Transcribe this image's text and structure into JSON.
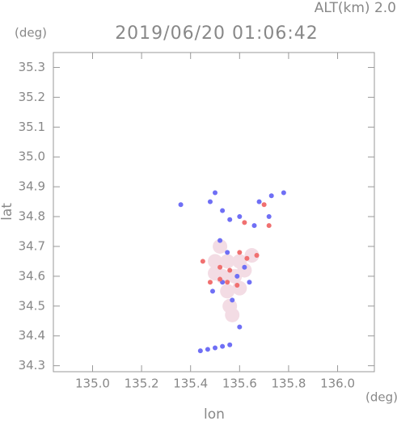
{
  "chart_data": {
    "type": "scatter",
    "title": "2019/06/20 01:06:42",
    "subtitle": "ALT(km) 2.0",
    "y_unit": "(deg)",
    "x_unit": "(deg)",
    "ylabel": "lat",
    "xlabel": "lon",
    "xlim": [
      134.84,
      136.15
    ],
    "ylim": [
      34.28,
      35.35
    ],
    "xticks": [
      {
        "value": 135,
        "label": "135.0"
      },
      135.2,
      135.4,
      135.6,
      135.8,
      {
        "value": 136,
        "label": "136.0"
      }
    ],
    "yticks": [
      35.3,
      35.2,
      35.1,
      {
        "value": 35,
        "label": "35.0"
      },
      34.9,
      34.8,
      34.7,
      34.6,
      34.5,
      34.4,
      34.3
    ],
    "series": [
      {
        "color": "#f3dce4",
        "x": [
          135.52,
          135.5,
          135.55,
          135.6,
          135.53,
          135.58,
          135.62,
          135.55,
          135.6,
          135.56,
          135.57,
          135.65,
          135.5
        ],
        "y": [
          34.7,
          34.65,
          34.65,
          34.65,
          34.6,
          34.6,
          34.62,
          34.55,
          34.56,
          34.5,
          34.47,
          34.67,
          34.61
        ]
      },
      {
        "color": "#6f6ff5",
        "x": [
          135.36,
          135.48,
          135.5,
          135.53,
          135.56,
          135.6,
          135.68,
          135.73,
          135.78,
          135.72,
          135.66,
          135.52,
          135.55,
          135.62,
          135.59,
          135.53,
          135.64,
          135.6,
          135.44,
          135.47,
          135.5,
          135.53,
          135.56,
          135.49,
          135.57
        ],
        "y": [
          34.84,
          34.85,
          34.88,
          34.82,
          34.79,
          34.8,
          34.85,
          34.87,
          34.88,
          34.8,
          34.77,
          34.72,
          34.68,
          34.63,
          34.6,
          34.58,
          34.58,
          34.43,
          34.35,
          34.355,
          34.36,
          34.365,
          34.37,
          34.55,
          34.52
        ]
      },
      {
        "color": "#f07070",
        "x": [
          135.45,
          135.48,
          135.52,
          135.56,
          135.6,
          135.63,
          135.67,
          135.59,
          135.55,
          135.62,
          135.7,
          135.72,
          135.52
        ],
        "y": [
          34.65,
          34.58,
          34.63,
          34.62,
          34.68,
          34.66,
          34.67,
          34.57,
          34.58,
          34.78,
          34.84,
          34.77,
          34.59
        ]
      }
    ]
  }
}
